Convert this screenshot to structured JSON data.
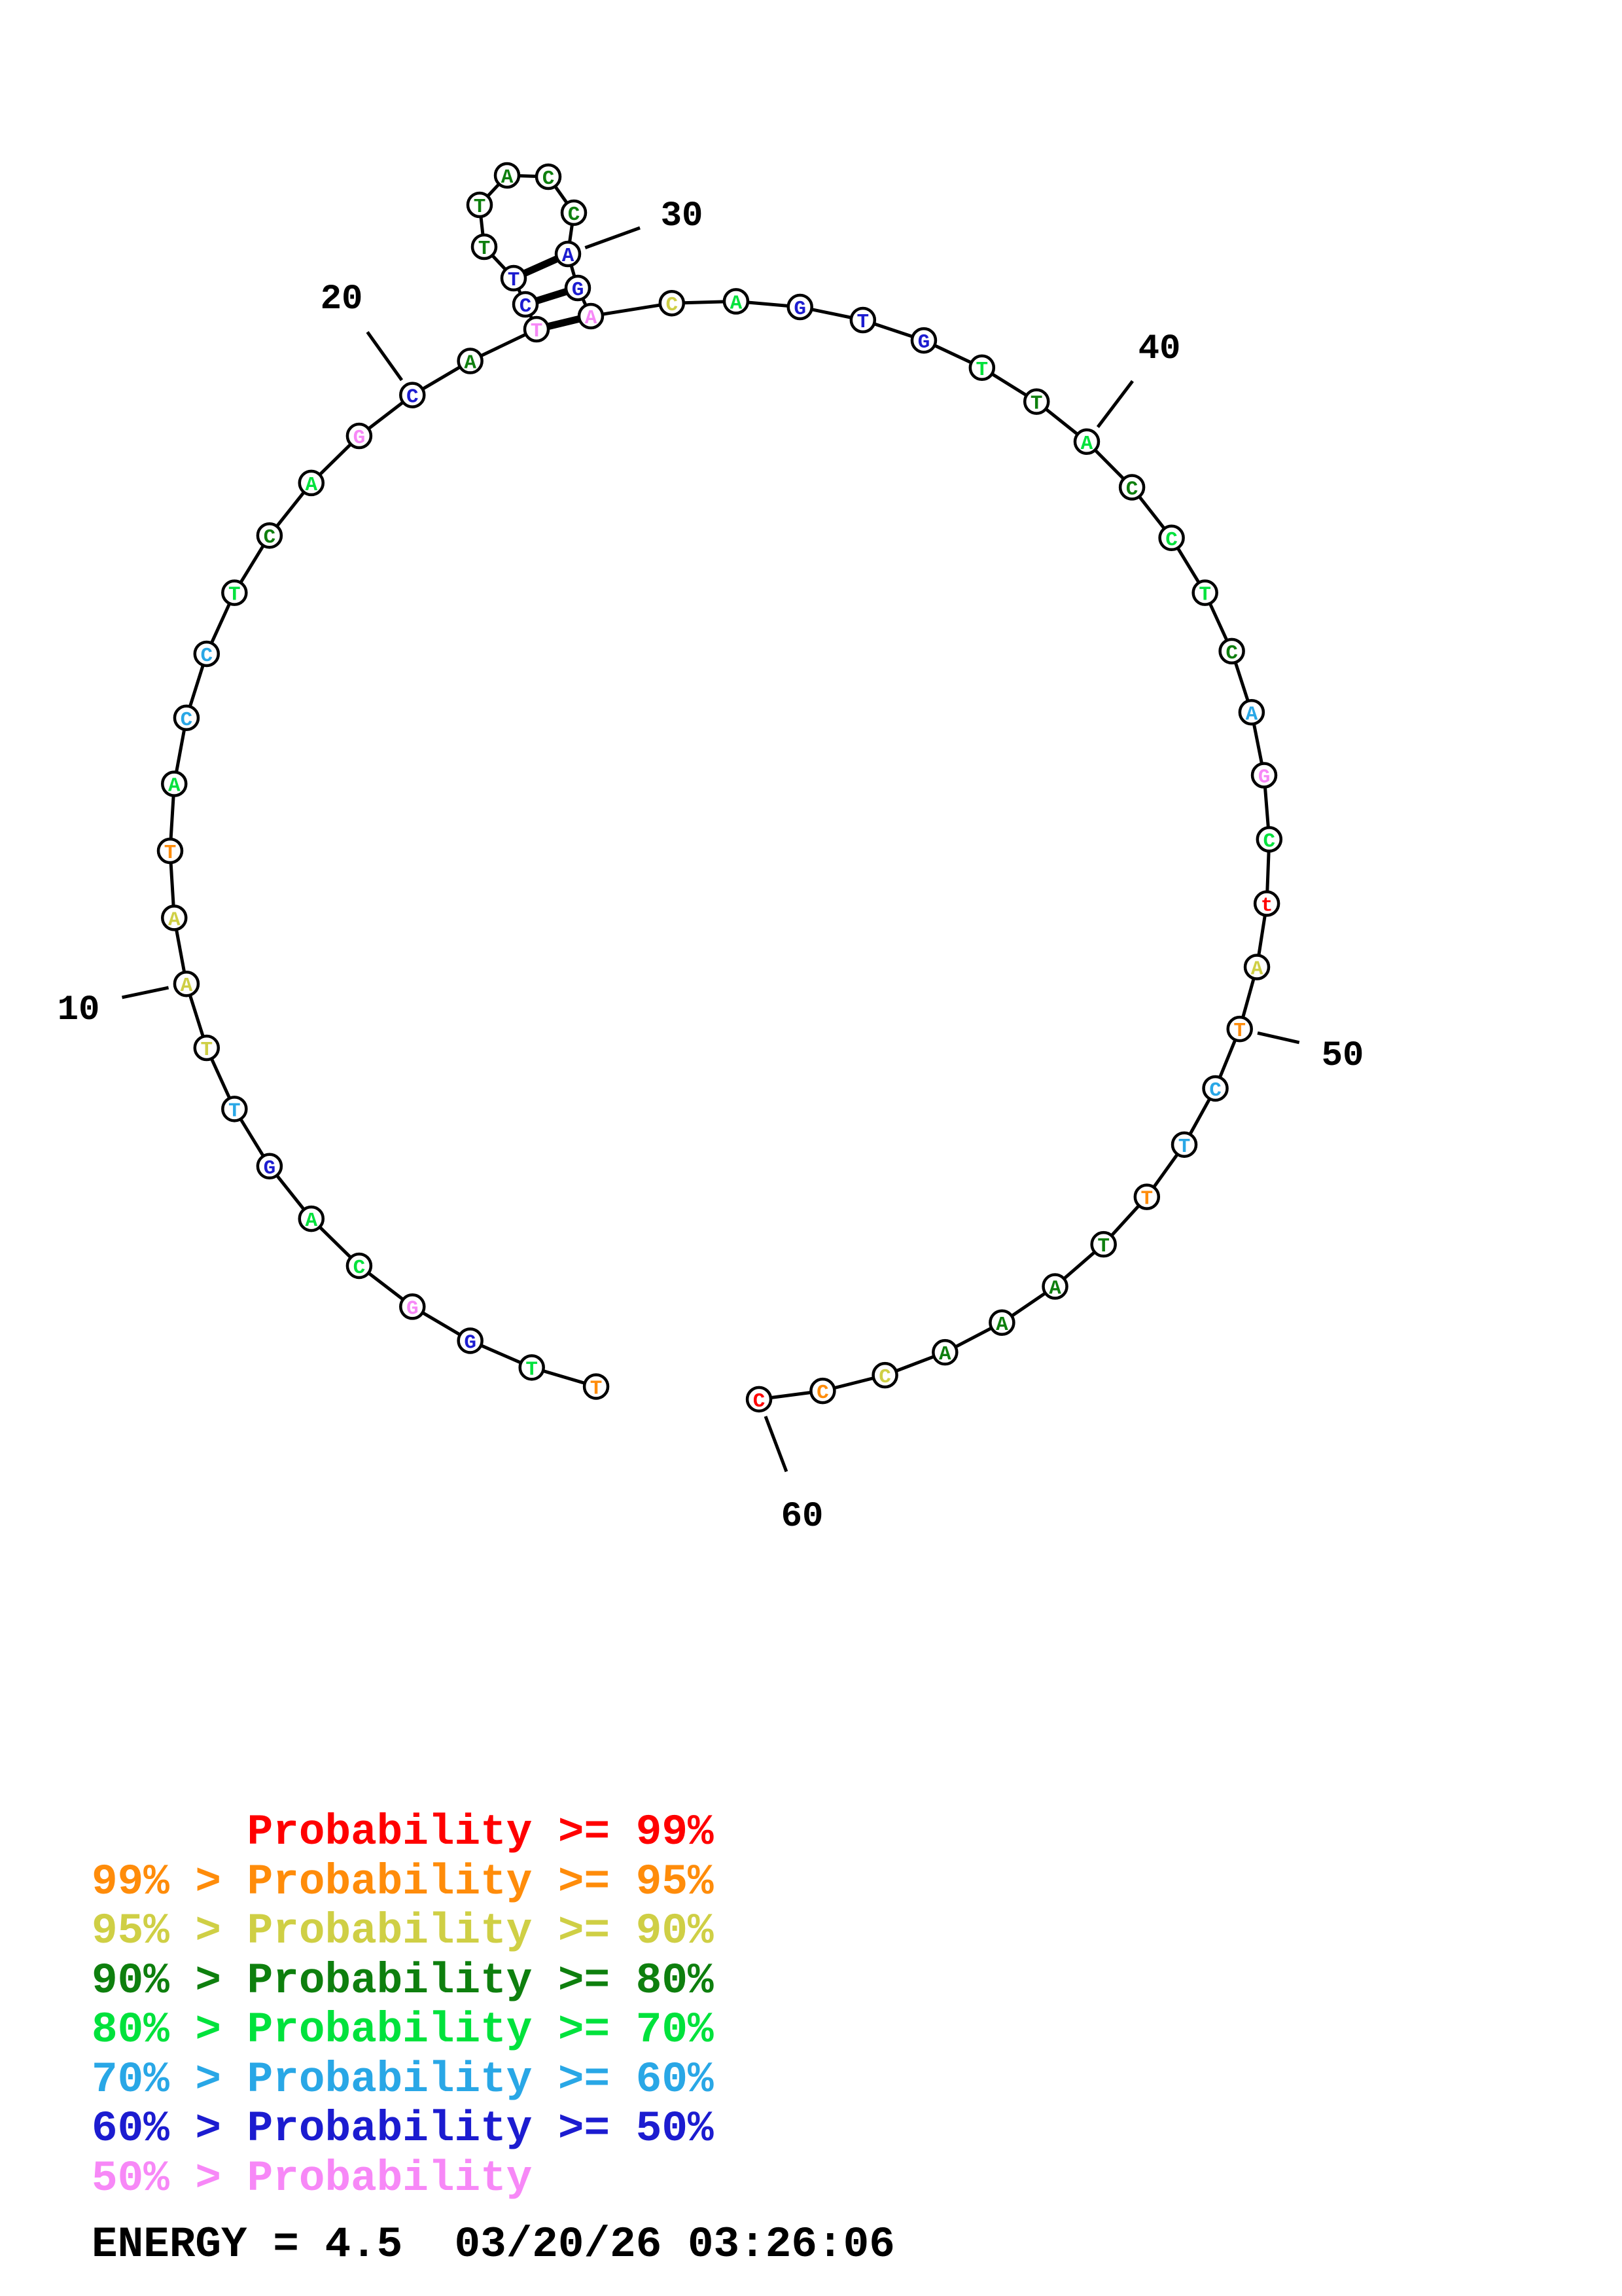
{
  "figure": {
    "type": "dna-secondary-structure-plot",
    "numbering_labels": [
      "10",
      "20",
      "30",
      "40",
      "50",
      "60"
    ],
    "sequence": [
      {
        "n": 1,
        "b": "T",
        "c": "orange"
      },
      {
        "n": 2,
        "b": "T",
        "c": "green"
      },
      {
        "n": 3,
        "b": "G",
        "c": "blue"
      },
      {
        "n": 4,
        "b": "G",
        "c": "violet"
      },
      {
        "n": 5,
        "b": "C",
        "c": "green"
      },
      {
        "n": 6,
        "b": "A",
        "c": "green"
      },
      {
        "n": 7,
        "b": "G",
        "c": "blue"
      },
      {
        "n": 8,
        "b": "T",
        "c": "cyan"
      },
      {
        "n": 9,
        "b": "T",
        "c": "yellow"
      },
      {
        "n": 10,
        "b": "A",
        "c": "yellow"
      },
      {
        "n": 11,
        "b": "A",
        "c": "yellow"
      },
      {
        "n": 12,
        "b": "T",
        "c": "orange"
      },
      {
        "n": 13,
        "b": "A",
        "c": "green"
      },
      {
        "n": 14,
        "b": "C",
        "c": "cyan"
      },
      {
        "n": 15,
        "b": "C",
        "c": "cyan"
      },
      {
        "n": 16,
        "b": "T",
        "c": "green"
      },
      {
        "n": 17,
        "b": "C",
        "c": "dkgreen"
      },
      {
        "n": 18,
        "b": "A",
        "c": "green"
      },
      {
        "n": 19,
        "b": "G",
        "c": "violet"
      },
      {
        "n": 20,
        "b": "C",
        "c": "blue"
      },
      {
        "n": 21,
        "b": "A",
        "c": "dkgreen"
      },
      {
        "n": 22,
        "b": "T",
        "c": "violet"
      },
      {
        "n": 23,
        "b": "C",
        "c": "blue"
      },
      {
        "n": 24,
        "b": "T",
        "c": "blue"
      },
      {
        "n": 25,
        "b": "T",
        "c": "dkgreen"
      },
      {
        "n": 26,
        "b": "T",
        "c": "dkgreen"
      },
      {
        "n": 27,
        "b": "A",
        "c": "dkgreen"
      },
      {
        "n": 28,
        "b": "C",
        "c": "dkgreen"
      },
      {
        "n": 29,
        "b": "C",
        "c": "dkgreen"
      },
      {
        "n": 30,
        "b": "A",
        "c": "blue"
      },
      {
        "n": 31,
        "b": "G",
        "c": "blue"
      },
      {
        "n": 32,
        "b": "A",
        "c": "violet"
      },
      {
        "n": 33,
        "b": "C",
        "c": "yellow"
      },
      {
        "n": 34,
        "b": "A",
        "c": "green"
      },
      {
        "n": 35,
        "b": "G",
        "c": "blue"
      },
      {
        "n": 36,
        "b": "T",
        "c": "blue"
      },
      {
        "n": 37,
        "b": "G",
        "c": "blue"
      },
      {
        "n": 38,
        "b": "T",
        "c": "green"
      },
      {
        "n": 39,
        "b": "T",
        "c": "dkgreen"
      },
      {
        "n": 40,
        "b": "A",
        "c": "green"
      },
      {
        "n": 41,
        "b": "C",
        "c": "dkgreen"
      },
      {
        "n": 42,
        "b": "C",
        "c": "green"
      },
      {
        "n": 43,
        "b": "T",
        "c": "green"
      },
      {
        "n": 44,
        "b": "C",
        "c": "dkgreen"
      },
      {
        "n": 45,
        "b": "A",
        "c": "cyan"
      },
      {
        "n": 46,
        "b": "G",
        "c": "violet"
      },
      {
        "n": 47,
        "b": "C",
        "c": "green"
      },
      {
        "n": 48,
        "b": "t",
        "c": "red"
      },
      {
        "n": 49,
        "b": "A",
        "c": "yellow"
      },
      {
        "n": 50,
        "b": "T",
        "c": "orange"
      },
      {
        "n": 51,
        "b": "C",
        "c": "cyan"
      },
      {
        "n": 52,
        "b": "T",
        "c": "cyan"
      },
      {
        "n": 53,
        "b": "T",
        "c": "orange"
      },
      {
        "n": 54,
        "b": "T",
        "c": "dkgreen"
      },
      {
        "n": 55,
        "b": "A",
        "c": "dkgreen"
      },
      {
        "n": 56,
        "b": "A",
        "c": "dkgreen"
      },
      {
        "n": 57,
        "b": "A",
        "c": "dkgreen"
      },
      {
        "n": 58,
        "b": "C",
        "c": "yellow"
      },
      {
        "n": 59,
        "b": "C",
        "c": "orange"
      },
      {
        "n": 60,
        "b": "C",
        "c": "red"
      }
    ],
    "base_pairs": [
      [
        22,
        32
      ],
      [
        23,
        31
      ],
      [
        24,
        30
      ]
    ],
    "colors": {
      "red": "#ff0000",
      "orange": "#ff8c0a",
      "yellow": "#cfcf45",
      "dkgreen": "#0e7f0e",
      "green": "#00e23c",
      "cyan": "#29a7e6",
      "blue": "#1c1cd0",
      "violet": "#f788f7",
      "outline": "#000000"
    },
    "legend": [
      {
        "label": "      Probability >= 99%",
        "color": "red"
      },
      {
        "label": "99% > Probability >= 95%",
        "color": "orange"
      },
      {
        "label": "95% > Probability >= 90%",
        "color": "yellow"
      },
      {
        "label": "90% > Probability >= 80%",
        "color": "dkgreen"
      },
      {
        "label": "80% > Probability >= 70%",
        "color": "green"
      },
      {
        "label": "70% > Probability >= 60%",
        "color": "cyan"
      },
      {
        "label": "60% > Probability >= 50%",
        "color": "blue"
      },
      {
        "label": "50% > Probability",
        "color": "violet"
      }
    ],
    "energy_line": "ENERGY = 4.5  03/20/26 03:26:06"
  }
}
